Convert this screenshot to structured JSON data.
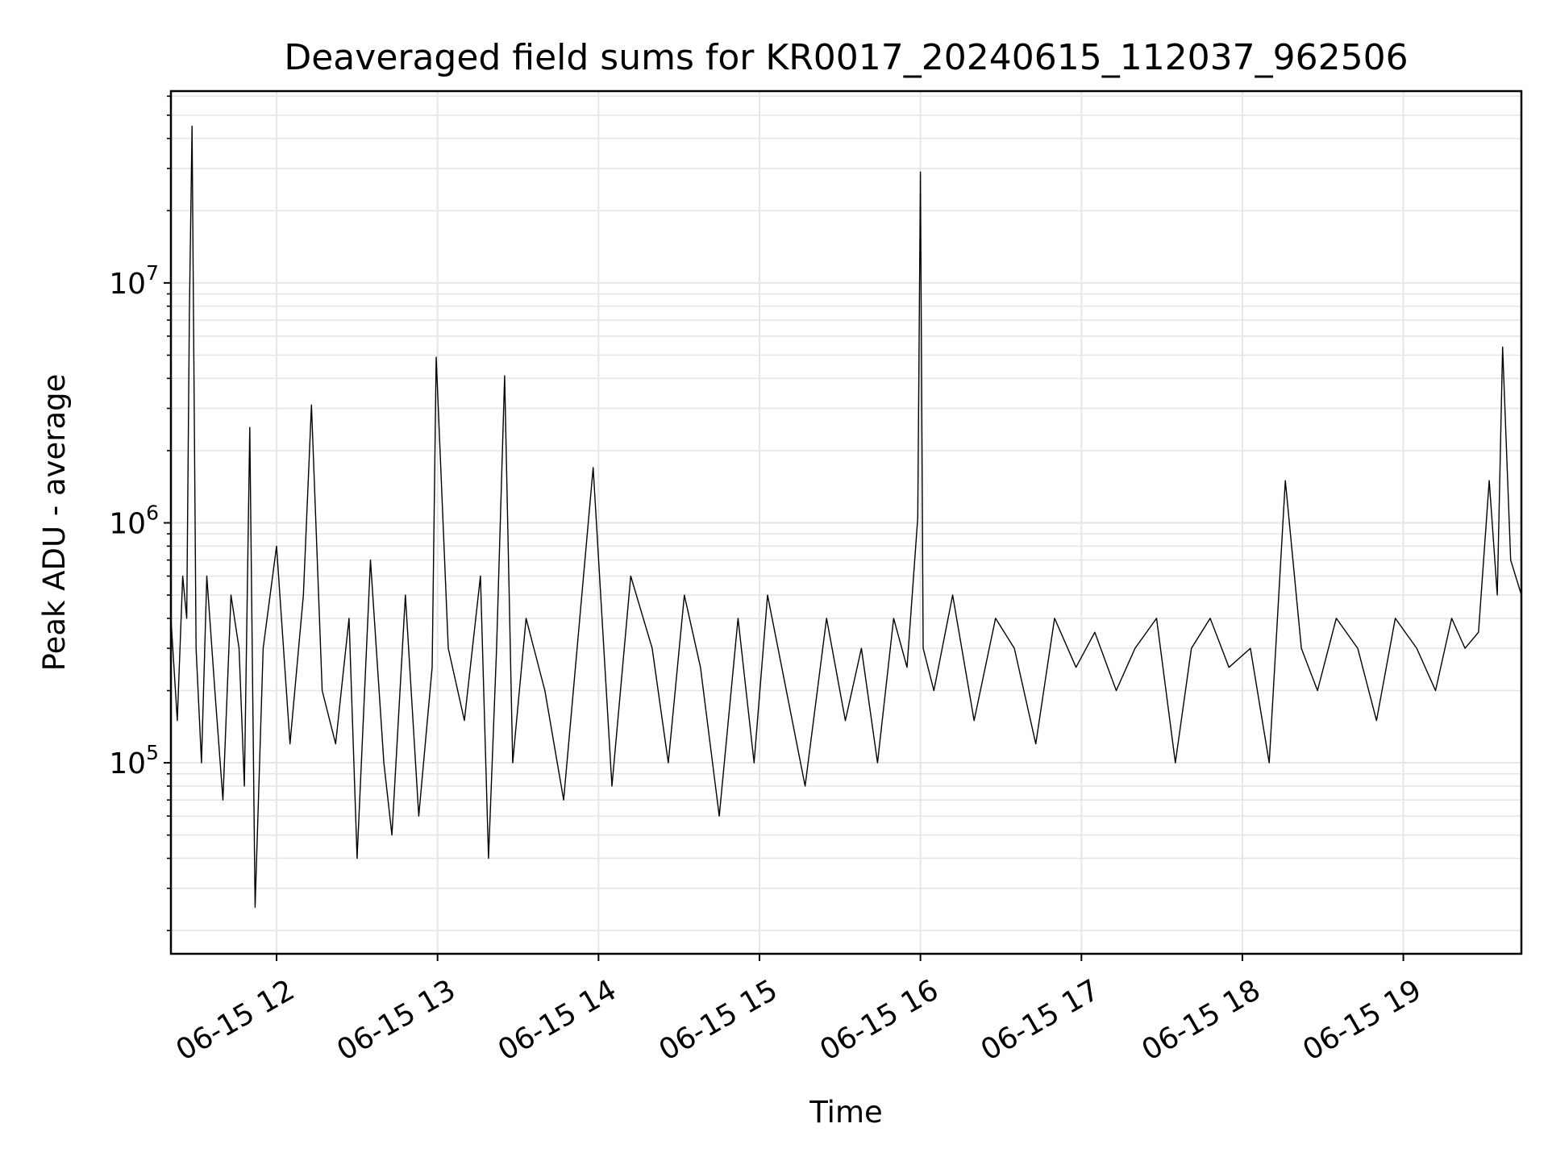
{
  "chart_data": {
    "type": "line",
    "title": "Deaveraged field sums for KR0017_20240615_112037_962506",
    "xlabel": "Time",
    "ylabel": "Peak ADU - average",
    "y_scale": "log",
    "grid": true,
    "grid_minor": true,
    "legend": "none",
    "line_color": "#000000",
    "grid_color": "#e6e6e6",
    "xlim": [
      "2024-06-15T11:20:37",
      "2024-06-15T19:44:00"
    ],
    "ylim": [
      16000,
      63000000
    ],
    "x_ticks": [
      {
        "value": "2024-06-15T12:00:00",
        "label": "06-15 12"
      },
      {
        "value": "2024-06-15T13:00:00",
        "label": "06-15 13"
      },
      {
        "value": "2024-06-15T14:00:00",
        "label": "06-15 14"
      },
      {
        "value": "2024-06-15T15:00:00",
        "label": "06-15 15"
      },
      {
        "value": "2024-06-15T16:00:00",
        "label": "06-15 16"
      },
      {
        "value": "2024-06-15T17:00:00",
        "label": "06-15 17"
      },
      {
        "value": "2024-06-15T18:00:00",
        "label": "06-15 18"
      },
      {
        "value": "2024-06-15T19:00:00",
        "label": "06-15 19"
      }
    ],
    "y_ticks": [
      {
        "value": 100000,
        "base": "10",
        "exp": "5"
      },
      {
        "value": 1000000,
        "base": "10",
        "exp": "6"
      },
      {
        "value": 10000000,
        "base": "10",
        "exp": "7"
      }
    ],
    "series": [
      {
        "x": [
          "2024-06-15T11:20:37",
          "2024-06-15T11:23:00",
          "2024-06-15T11:25:00",
          "2024-06-15T11:26:30",
          "2024-06-15T11:27:30",
          "2024-06-15T11:28:30",
          "2024-06-15T11:30:00",
          "2024-06-15T11:32:00",
          "2024-06-15T11:34:00",
          "2024-06-15T11:37:00",
          "2024-06-15T11:40:00",
          "2024-06-15T11:43:00",
          "2024-06-15T11:46:00",
          "2024-06-15T11:48:00",
          "2024-06-15T11:50:00",
          "2024-06-15T11:52:00",
          "2024-06-15T11:55:00",
          "2024-06-15T12:00:00",
          "2024-06-15T12:05:00",
          "2024-06-15T12:10:00",
          "2024-06-15T12:13:00",
          "2024-06-15T12:17:00",
          "2024-06-15T12:22:00",
          "2024-06-15T12:27:00",
          "2024-06-15T12:30:00",
          "2024-06-15T12:35:00",
          "2024-06-15T12:40:00",
          "2024-06-15T12:43:00",
          "2024-06-15T12:48:00",
          "2024-06-15T12:53:00",
          "2024-06-15T12:58:00",
          "2024-06-15T12:59:30",
          "2024-06-15T13:04:00",
          "2024-06-15T13:10:00",
          "2024-06-15T13:16:00",
          "2024-06-15T13:19:00",
          "2024-06-15T13:22:00",
          "2024-06-15T13:25:00",
          "2024-06-15T13:28:00",
          "2024-06-15T13:33:00",
          "2024-06-15T13:40:00",
          "2024-06-15T13:47:00",
          "2024-06-15T13:53:00",
          "2024-06-15T13:58:00",
          "2024-06-15T14:05:00",
          "2024-06-15T14:12:00",
          "2024-06-15T14:20:00",
          "2024-06-15T14:26:00",
          "2024-06-15T14:32:00",
          "2024-06-15T14:38:00",
          "2024-06-15T14:45:00",
          "2024-06-15T14:52:00",
          "2024-06-15T14:58:00",
          "2024-06-15T15:03:00",
          "2024-06-15T15:10:00",
          "2024-06-15T15:17:00",
          "2024-06-15T15:25:00",
          "2024-06-15T15:32:00",
          "2024-06-15T15:38:00",
          "2024-06-15T15:44:00",
          "2024-06-15T15:50:00",
          "2024-06-15T15:55:00",
          "2024-06-15T15:59:00",
          "2024-06-15T16:00:00",
          "2024-06-15T16:01:00",
          "2024-06-15T16:05:00",
          "2024-06-15T16:12:00",
          "2024-06-15T16:20:00",
          "2024-06-15T16:28:00",
          "2024-06-15T16:35:00",
          "2024-06-15T16:43:00",
          "2024-06-15T16:50:00",
          "2024-06-15T16:58:00",
          "2024-06-15T17:05:00",
          "2024-06-15T17:13:00",
          "2024-06-15T17:20:00",
          "2024-06-15T17:28:00",
          "2024-06-15T17:35:00",
          "2024-06-15T17:41:00",
          "2024-06-15T17:48:00",
          "2024-06-15T17:55:00",
          "2024-06-15T18:03:00",
          "2024-06-15T18:10:00",
          "2024-06-15T18:16:00",
          "2024-06-15T18:22:00",
          "2024-06-15T18:28:00",
          "2024-06-15T18:35:00",
          "2024-06-15T18:43:00",
          "2024-06-15T18:50:00",
          "2024-06-15T18:57:00",
          "2024-06-15T19:05:00",
          "2024-06-15T19:12:00",
          "2024-06-15T19:18:00",
          "2024-06-15T19:23:00",
          "2024-06-15T19:28:00",
          "2024-06-15T19:32:00",
          "2024-06-15T19:35:00",
          "2024-06-15T19:37:00",
          "2024-06-15T19:40:00",
          "2024-06-15T19:44:00"
        ],
        "y": [
          400000,
          150000,
          600000,
          400000,
          7500000,
          45000000,
          300000,
          100000,
          600000,
          200000,
          70000,
          500000,
          300000,
          80000,
          2500000,
          25000,
          300000,
          800000,
          120000,
          500000,
          3100000,
          200000,
          120000,
          400000,
          40000,
          700000,
          100000,
          50000,
          500000,
          60000,
          250000,
          4900000,
          300000,
          150000,
          600000,
          40000,
          300000,
          4100000,
          100000,
          400000,
          200000,
          70000,
          400000,
          1700000,
          80000,
          600000,
          300000,
          100000,
          500000,
          250000,
          60000,
          400000,
          100000,
          500000,
          200000,
          80000,
          400000,
          150000,
          300000,
          100000,
          400000,
          250000,
          1050000,
          29000000,
          300000,
          200000,
          500000,
          150000,
          400000,
          300000,
          120000,
          400000,
          250000,
          350000,
          200000,
          300000,
          400000,
          100000,
          300000,
          400000,
          250000,
          300000,
          100000,
          1500000,
          300000,
          200000,
          400000,
          300000,
          150000,
          400000,
          300000,
          200000,
          400000,
          300000,
          350000,
          1500000,
          500000,
          5400000,
          700000,
          500000
        ]
      }
    ]
  }
}
